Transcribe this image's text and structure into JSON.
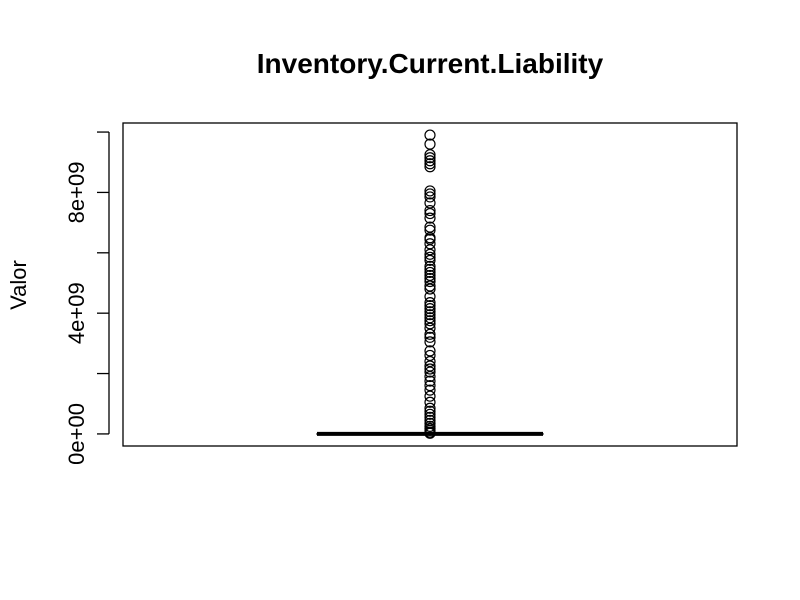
{
  "chart_data": {
    "type": "boxplot",
    "title": "Inventory.Current.Liability",
    "xlabel": "",
    "ylabel": "Valor",
    "ylim": [
      -400000000,
      10300000000
    ],
    "y_ticks": [
      0,
      2000000000,
      4000000000,
      6000000000,
      8000000000,
      10000000000
    ],
    "y_tick_labels": [
      "0e+00",
      "",
      "4e+09",
      "",
      "8e+09",
      ""
    ],
    "grid": false,
    "box": {
      "q1": 0,
      "median": 0,
      "q3": 0,
      "whisker_low": 0,
      "whisker_high": 0
    },
    "outliers": [
      9900000000,
      9600000000,
      9250000000,
      9150000000,
      9050000000,
      8950000000,
      8850000000,
      8050000000,
      7950000000,
      7850000000,
      7650000000,
      7400000000,
      7300000000,
      7150000000,
      6850000000,
      6750000000,
      6500000000,
      6450000000,
      6300000000,
      6100000000,
      5950000000,
      5850000000,
      5750000000,
      5550000000,
      5450000000,
      5350000000,
      5250000000,
      5150000000,
      5050000000,
      4900000000,
      4800000000,
      4550000000,
      4350000000,
      4250000000,
      4150000000,
      4050000000,
      3950000000,
      3850000000,
      3750000000,
      3650000000,
      3500000000,
      3300000000,
      3200000000,
      3050000000,
      2750000000,
      2600000000,
      2400000000,
      2250000000,
      2150000000,
      2050000000,
      1900000000,
      1750000000,
      1600000000,
      1450000000,
      1250000000,
      1050000000,
      850000000,
      750000000,
      650000000,
      550000000,
      450000000,
      350000000,
      250000000,
      180000000,
      120000000,
      60000000,
      20000000
    ]
  }
}
